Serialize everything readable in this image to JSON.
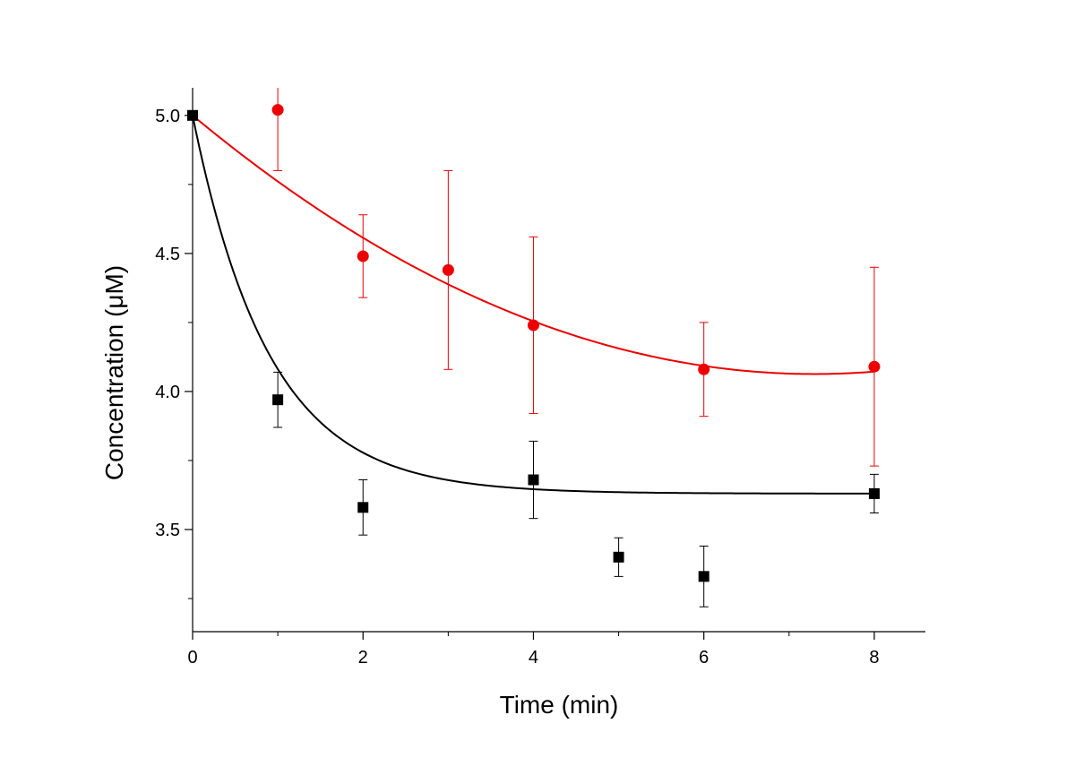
{
  "chart_data": {
    "type": "scatter",
    "title": "",
    "xlabel": "Time (min)",
    "ylabel": "Concentration (μM)",
    "xlim": [
      0,
      8.6
    ],
    "ylim": [
      3.13,
      5.1
    ],
    "xticks": [
      0,
      2,
      4,
      6,
      8
    ],
    "xtick_labels": [
      "0",
      "2",
      "4",
      "6",
      "8"
    ],
    "xminor": [
      1,
      3,
      5,
      7
    ],
    "yticks": [
      3.5,
      4.0,
      4.5,
      5.0
    ],
    "ytick_labels": [
      "3.5",
      "4.0",
      "4.5",
      "5.0"
    ],
    "yminor": [
      3.25,
      3.75,
      4.25,
      4.75
    ],
    "grid": false,
    "legend": "none",
    "series": [
      {
        "name": "red",
        "color": "#ee0000",
        "marker": "circle",
        "x": [
          1,
          2,
          3,
          4,
          6,
          8
        ],
        "y": [
          5.02,
          4.49,
          4.44,
          4.24,
          4.08,
          4.09
        ],
        "err": [
          0.22,
          0.15,
          0.36,
          0.32,
          0.17,
          0.36
        ],
        "fit": {
          "kind": "quadratic",
          "coef": [
            5.0,
            -0.2568,
            0.0176
          ],
          "x_range": [
            0,
            8
          ]
        }
      },
      {
        "name": "black",
        "color": "#000000",
        "marker": "square",
        "x": [
          0,
          1,
          2,
          4,
          5,
          6,
          8
        ],
        "y": [
          5.0,
          3.97,
          3.58,
          3.68,
          3.4,
          3.33,
          3.63
        ],
        "err": [
          0,
          0.1,
          0.1,
          0.14,
          0.07,
          0.11,
          0.07
        ],
        "fit": {
          "kind": "exp_decay",
          "y0": 3.63,
          "amp": 1.37,
          "tau": 0.9,
          "x_range": [
            0,
            8
          ]
        }
      }
    ]
  }
}
